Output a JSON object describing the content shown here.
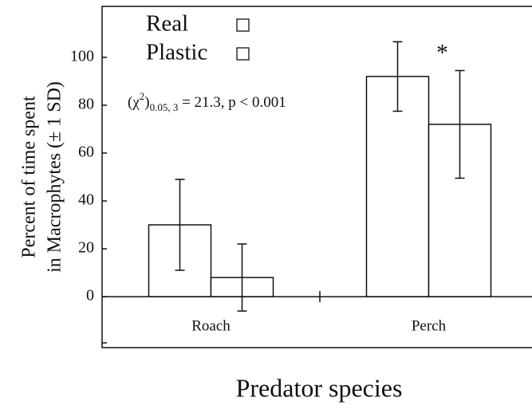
{
  "chart_data": {
    "type": "bar",
    "categories": [
      "Roach",
      "Perch"
    ],
    "series": [
      {
        "name": "Real",
        "color": "#ffffff",
        "values": [
          30,
          92
        ],
        "errors": [
          19,
          14.5
        ]
      },
      {
        "name": "Plastic",
        "color": "#ffffff",
        "values": [
          8,
          72
        ],
        "errors": [
          14,
          22.5
        ]
      }
    ],
    "ylim": [
      -21.3,
      121.3
    ],
    "yticks": [
      0,
      20,
      40,
      60,
      80,
      100
    ],
    "ylabel": [
      "Percent of time spent",
      "in Macrophytes  (± 1 SD)"
    ],
    "xlabel": "Predator species",
    "stat_annotation": [
      "(χ",
      "2",
      ")",
      "0.05, 3",
      " = 21.3, p < 0.001"
    ],
    "significance_marker": "*",
    "legend": "top-left"
  }
}
